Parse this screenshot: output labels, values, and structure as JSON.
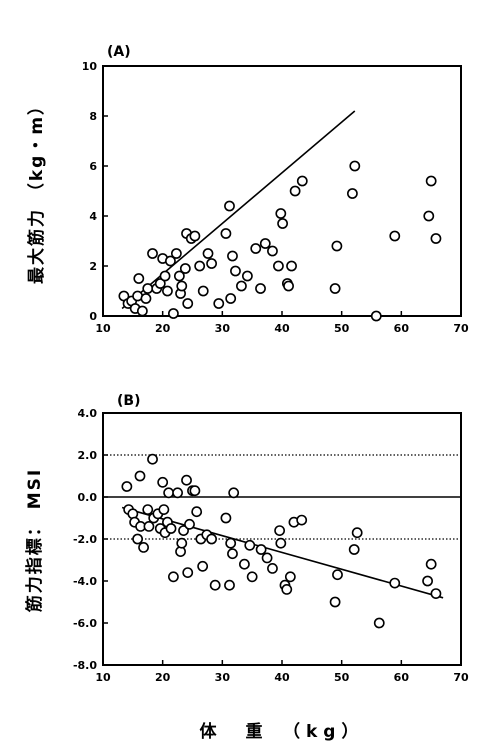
{
  "chart_data": [
    {
      "type": "scatter",
      "panel_label": "(A)",
      "ylabel": "最大筋力 （kg・m）",
      "xlim": [
        10,
        70
      ],
      "ylim": [
        0,
        10
      ],
      "xticks": [
        "10",
        "20",
        "30",
        "40",
        "50",
        "60",
        "70"
      ],
      "yticks": [
        "0",
        "2",
        "4",
        "6",
        "8",
        "10"
      ],
      "points": [
        [
          13.5,
          0.8
        ],
        [
          14.2,
          0.5
        ],
        [
          14.8,
          0.6
        ],
        [
          15.4,
          0.3
        ],
        [
          15.8,
          0.8
        ],
        [
          16.0,
          1.5
        ],
        [
          16.6,
          0.2
        ],
        [
          17.2,
          0.7
        ],
        [
          17.5,
          1.1
        ],
        [
          18.3,
          2.5
        ],
        [
          19.0,
          1.1
        ],
        [
          19.6,
          1.3
        ],
        [
          20.0,
          2.3
        ],
        [
          20.4,
          1.6
        ],
        [
          20.8,
          1.0
        ],
        [
          21.3,
          2.2
        ],
        [
          21.8,
          0.1
        ],
        [
          22.3,
          2.5
        ],
        [
          22.8,
          1.6
        ],
        [
          23.0,
          0.9
        ],
        [
          23.2,
          1.2
        ],
        [
          23.8,
          1.9
        ],
        [
          24.0,
          3.3
        ],
        [
          24.2,
          0.5
        ],
        [
          24.8,
          3.1
        ],
        [
          25.4,
          3.2
        ],
        [
          26.2,
          2.0
        ],
        [
          26.8,
          1.0
        ],
        [
          27.6,
          2.5
        ],
        [
          28.2,
          2.1
        ],
        [
          29.4,
          0.5
        ],
        [
          30.6,
          3.3
        ],
        [
          31.2,
          4.4
        ],
        [
          31.4,
          0.7
        ],
        [
          31.7,
          2.4
        ],
        [
          32.2,
          1.8
        ],
        [
          33.2,
          1.2
        ],
        [
          34.2,
          1.6
        ],
        [
          35.6,
          2.7
        ],
        [
          36.4,
          1.1
        ],
        [
          37.2,
          2.9
        ],
        [
          38.4,
          2.6
        ],
        [
          39.4,
          2.0
        ],
        [
          39.8,
          4.1
        ],
        [
          40.1,
          3.7
        ],
        [
          40.9,
          1.3
        ],
        [
          41.1,
          1.2
        ],
        [
          41.6,
          2.0
        ],
        [
          42.2,
          5.0
        ],
        [
          43.4,
          5.4
        ],
        [
          48.9,
          1.1
        ],
        [
          49.2,
          2.8
        ],
        [
          51.8,
          4.9
        ],
        [
          52.2,
          6.0
        ],
        [
          55.8,
          0.0
        ],
        [
          58.9,
          3.2
        ],
        [
          64.6,
          4.0
        ],
        [
          65.0,
          5.4
        ],
        [
          65.8,
          3.1
        ]
      ],
      "fit_line": [
        [
          13.2,
          0.3
        ],
        [
          52.2,
          8.2
        ]
      ],
      "ref_lines": []
    },
    {
      "type": "scatter",
      "panel_label": "(B)",
      "ylabel": "筋力指標： MSI",
      "xlabel": "体　重　（kg）",
      "xlim": [
        10,
        70
      ],
      "ylim": [
        -8,
        4
      ],
      "xticks": [
        "10",
        "20",
        "30",
        "40",
        "50",
        "60",
        "70"
      ],
      "yticks": [
        "4.0",
        "2.0",
        "0.0",
        "-2.0",
        "-4.0",
        "-6.0",
        "-8.0"
      ],
      "points": [
        [
          14.0,
          0.5
        ],
        [
          14.3,
          -0.6
        ],
        [
          15.0,
          -0.8
        ],
        [
          15.3,
          -1.2
        ],
        [
          15.8,
          -2.0
        ],
        [
          16.2,
          1.0
        ],
        [
          16.3,
          -1.4
        ],
        [
          16.8,
          -2.4
        ],
        [
          17.5,
          -0.6
        ],
        [
          17.7,
          -1.4
        ],
        [
          18.3,
          1.8
        ],
        [
          18.5,
          -1.0
        ],
        [
          19.2,
          -0.8
        ],
        [
          19.6,
          -1.5
        ],
        [
          20.0,
          0.7
        ],
        [
          20.2,
          -0.6
        ],
        [
          20.4,
          -1.7
        ],
        [
          20.8,
          -1.2
        ],
        [
          21.0,
          0.2
        ],
        [
          21.4,
          -1.5
        ],
        [
          21.8,
          -3.8
        ],
        [
          22.5,
          0.2
        ],
        [
          23.0,
          -2.6
        ],
        [
          23.2,
          -2.2
        ],
        [
          23.5,
          -1.6
        ],
        [
          24.0,
          0.8
        ],
        [
          24.2,
          -3.6
        ],
        [
          24.5,
          -1.3
        ],
        [
          25.0,
          0.3
        ],
        [
          25.4,
          0.3
        ],
        [
          25.7,
          -0.7
        ],
        [
          26.4,
          -2.0
        ],
        [
          26.7,
          -3.3
        ],
        [
          27.4,
          -1.8
        ],
        [
          28.2,
          -2.0
        ],
        [
          28.8,
          -4.2
        ],
        [
          30.6,
          -1.0
        ],
        [
          31.2,
          -4.2
        ],
        [
          31.4,
          -2.2
        ],
        [
          31.7,
          -2.7
        ],
        [
          31.9,
          0.2
        ],
        [
          33.7,
          -3.2
        ],
        [
          34.6,
          -2.3
        ],
        [
          35.0,
          -3.8
        ],
        [
          36.5,
          -2.5
        ],
        [
          37.5,
          -2.9
        ],
        [
          38.4,
          -3.4
        ],
        [
          39.6,
          -1.6
        ],
        [
          39.8,
          -2.2
        ],
        [
          40.5,
          -4.2
        ],
        [
          40.8,
          -4.4
        ],
        [
          41.4,
          -3.8
        ],
        [
          42.0,
          -1.2
        ],
        [
          43.3,
          -1.1
        ],
        [
          48.9,
          -5.0
        ],
        [
          49.3,
          -3.7
        ],
        [
          52.1,
          -2.5
        ],
        [
          52.6,
          -1.7
        ],
        [
          56.3,
          -6.0
        ],
        [
          58.9,
          -4.1
        ],
        [
          64.4,
          -4.0
        ],
        [
          65.0,
          -3.2
        ],
        [
          65.8,
          -4.6
        ]
      ],
      "fit_line": [
        [
          13.2,
          -0.5
        ],
        [
          67.0,
          -4.8
        ]
      ],
      "ref_lines": [
        2.0,
        -2.0
      ],
      "zero_line": 0.0
    }
  ]
}
